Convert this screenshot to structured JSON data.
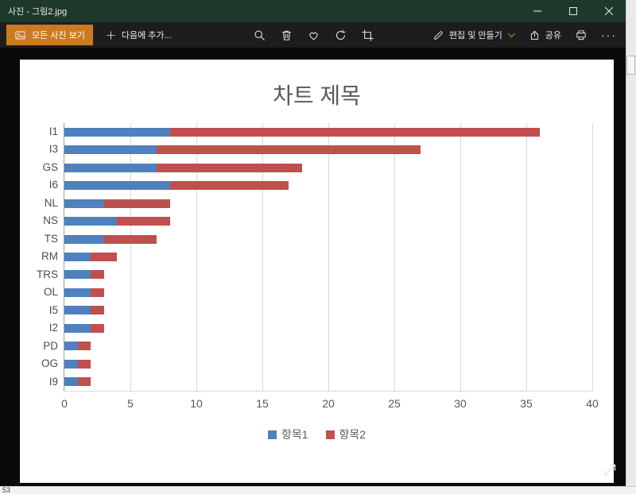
{
  "colors": {
    "accent": "#ca7b22",
    "titlebar": "#1d392b",
    "chart_text": "#595959"
  },
  "window": {
    "title": "사진 - 그림2.jpg"
  },
  "toolbar": {
    "see_all_photos": "모든 사진 보기",
    "add_to": "다음에 추가...",
    "edit_create": "편집 및 만들기",
    "share": "공유",
    "more_glyph": "···"
  },
  "chart_data": {
    "type": "bar",
    "orientation": "horizontal",
    "stacked": true,
    "title": "차트 제목",
    "categories": [
      "I1",
      "I3",
      "GS",
      "I6",
      "NL",
      "NS",
      "TS",
      "RM",
      "TRS",
      "OL",
      "I5",
      "I2",
      "PD",
      "OG",
      "I9"
    ],
    "series": [
      {
        "name": "항목1",
        "color": "#4e81bd",
        "values": [
          8,
          7,
          7,
          8,
          3,
          4,
          3,
          2,
          2,
          2,
          2,
          2,
          1,
          1,
          1
        ]
      },
      {
        "name": "항목2",
        "color": "#c0504d",
        "values": [
          28,
          20,
          11,
          9,
          5,
          4,
          4,
          2,
          1,
          1,
          1,
          1,
          1,
          1,
          1
        ]
      }
    ],
    "xlim": [
      0,
      40
    ],
    "xticks": [
      0,
      5,
      10,
      15,
      20,
      25,
      30,
      35,
      40
    ],
    "grid": true,
    "legend_position": "bottom"
  },
  "excel": {
    "row_label": "53"
  }
}
